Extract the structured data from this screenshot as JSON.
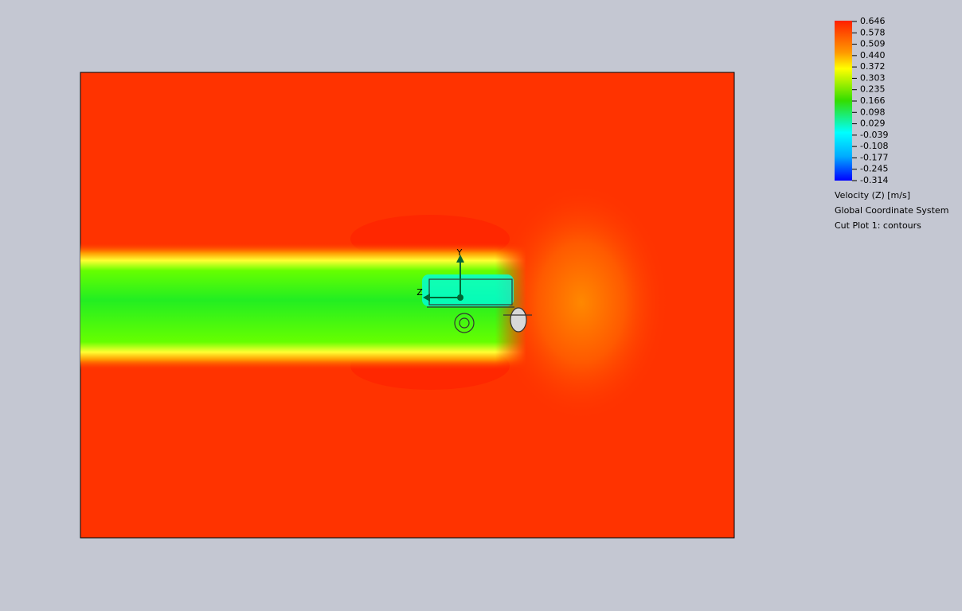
{
  "legend": {
    "ticks": [
      "0.646",
      "0.578",
      "0.509",
      "0.440",
      "0.372",
      "0.303",
      "0.235",
      "0.166",
      "0.098",
      "0.029",
      "-0.039",
      "-0.108",
      "-0.177",
      "-0.245",
      "-0.314"
    ],
    "quantity": "Velocity (Z) [m/s]",
    "coordinate_system": "Global Coordinate System",
    "plot_name": "Cut Plot 1: contours"
  },
  "triad": {
    "y_label": "Y",
    "z_label": "Z"
  }
}
